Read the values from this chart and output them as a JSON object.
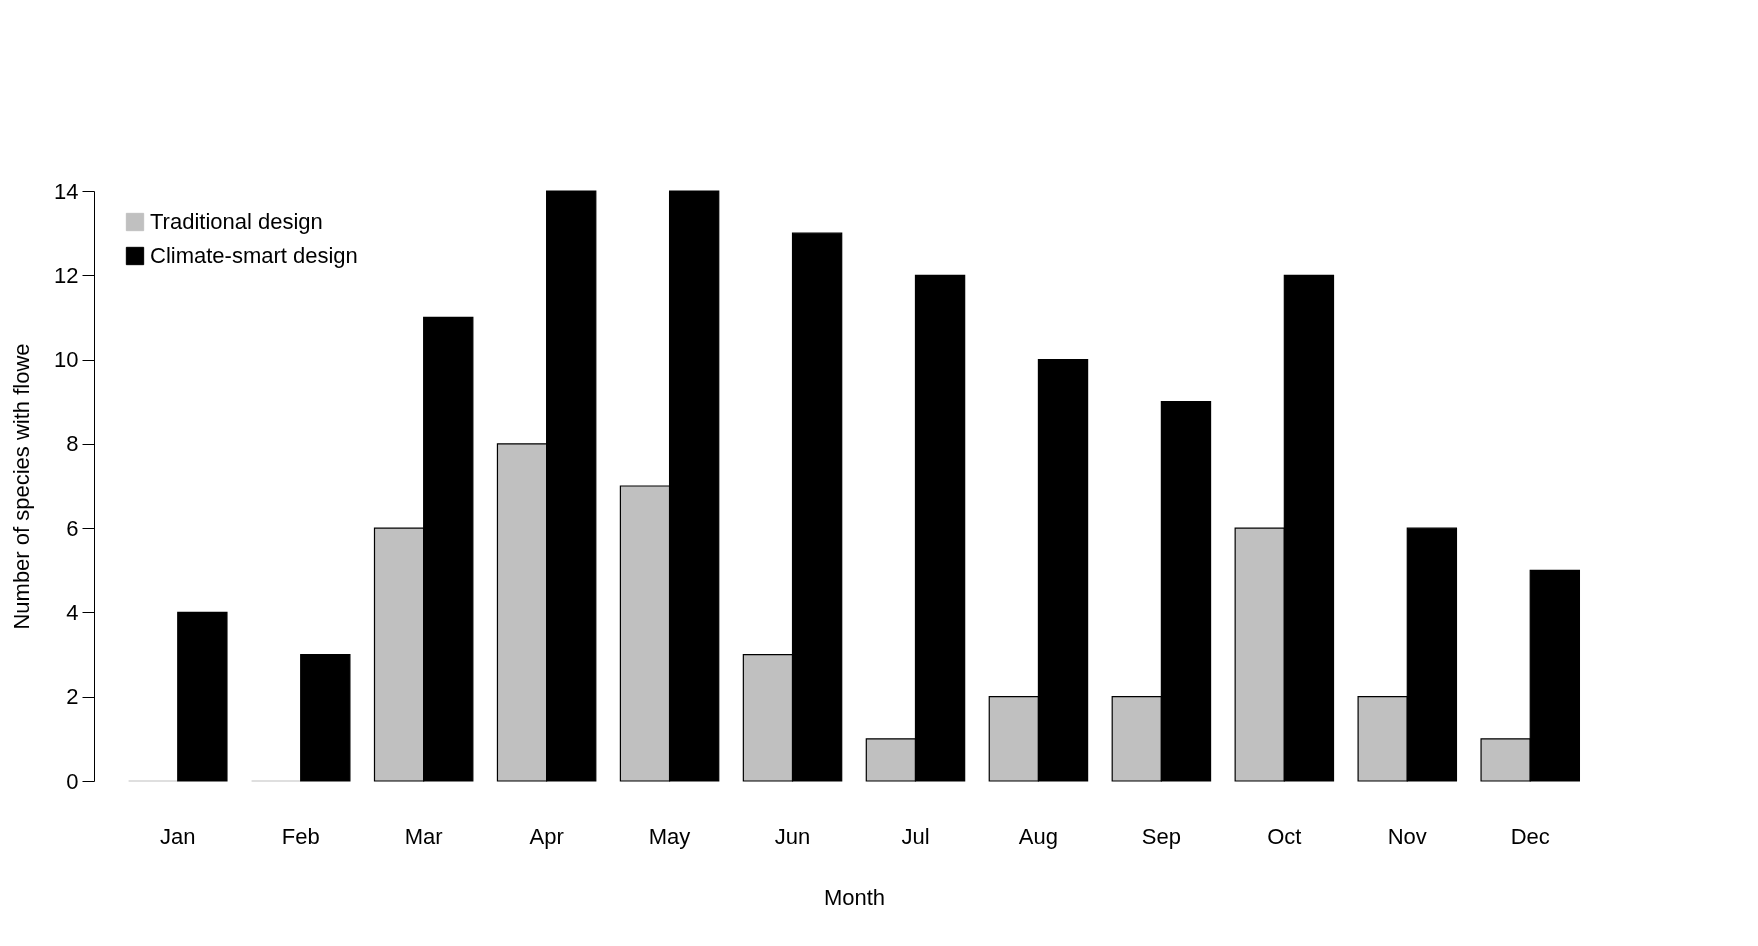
{
  "chart_data": {
    "type": "bar",
    "xlabel": "Month",
    "ylabel": "Number of species with flowe",
    "categories": [
      "Jan",
      "Feb",
      "Mar",
      "Apr",
      "May",
      "Jun",
      "Jul",
      "Aug",
      "Sep",
      "Oct",
      "Nov",
      "Dec"
    ],
    "series": [
      {
        "name": "Traditional design",
        "color": "#c0c0c0",
        "values": [
          0,
          0,
          6,
          8,
          7,
          3,
          1,
          2,
          2,
          6,
          2,
          1
        ]
      },
      {
        "name": "Climate-smart design",
        "color": "#000000",
        "values": [
          4,
          3,
          11,
          14,
          14,
          13,
          12,
          10,
          9,
          12,
          6,
          5
        ]
      }
    ],
    "ylim": [
      0,
      14
    ],
    "yticks": [
      0,
      2,
      4,
      6,
      8,
      10,
      12,
      14
    ],
    "grid": false,
    "legend": "top left"
  }
}
